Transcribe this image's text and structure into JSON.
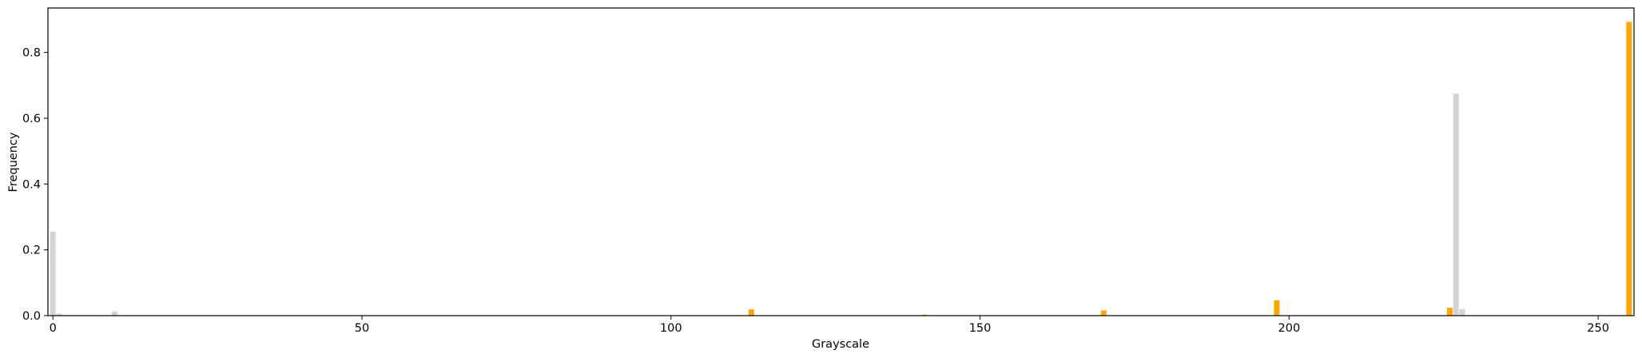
{
  "chart_data": {
    "type": "bar",
    "xlabel": "Grayscale",
    "ylabel": "Frequency",
    "xlim": [
      -0.8,
      255.8
    ],
    "ylim": [
      0,
      0.935
    ],
    "x_ticks": [
      0,
      50,
      100,
      150,
      200,
      250
    ],
    "y_ticks": [
      0.0,
      0.2,
      0.4,
      0.6,
      0.8
    ],
    "y_tick_labels": [
      "0.0",
      "0.2",
      "0.4",
      "0.6",
      "0.8"
    ],
    "grid": false,
    "series": [
      {
        "color": "#d3d3d3",
        "points": [
          {
            "x": 0,
            "y": 0.255
          },
          {
            "x": 1,
            "y": 0.006
          },
          {
            "x": 2,
            "y": 0.002
          },
          {
            "x": 3,
            "y": 0.002
          },
          {
            "x": 4,
            "y": 0.002
          },
          {
            "x": 5,
            "y": 0.002
          },
          {
            "x": 6,
            "y": 0.002
          },
          {
            "x": 10,
            "y": 0.013
          },
          {
            "x": 227,
            "y": 0.675
          },
          {
            "x": 228,
            "y": 0.02
          }
        ]
      },
      {
        "color": "#ffa500",
        "points": [
          {
            "x": 113,
            "y": 0.019
          },
          {
            "x": 141,
            "y": 0.003
          },
          {
            "x": 170,
            "y": 0.016
          },
          {
            "x": 198,
            "y": 0.047
          },
          {
            "x": 226,
            "y": 0.024
          },
          {
            "x": 255,
            "y": 0.893
          }
        ]
      }
    ]
  }
}
